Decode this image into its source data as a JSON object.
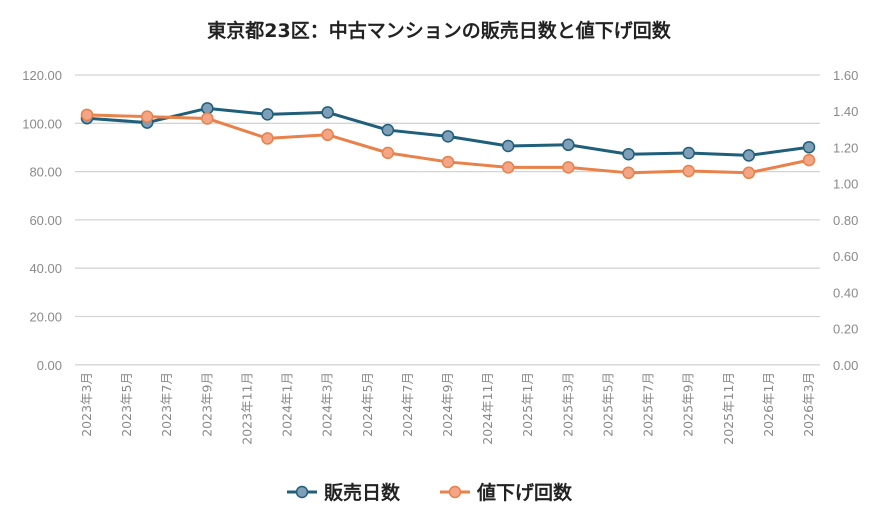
{
  "chart_data": {
    "type": "line",
    "title": "東京都23区：中古マンションの販売日数と値下げ回数",
    "x_tick_labels": [
      "2023年3月",
      "2023年5月",
      "2023年7月",
      "2023年9月",
      "2023年11月",
      "2024年1月",
      "2024年3月",
      "2024年5月",
      "2024年7月",
      "2024年9月",
      "2024年11月",
      "2025年1月",
      "2025年3月",
      "2025年5月",
      "2025年7月",
      "2025年9月",
      "2025年11月",
      "2026年1月",
      "2026年3月"
    ],
    "x": [
      "2023-03",
      "2023-06",
      "2023-09",
      "2023-12",
      "2024-03",
      "2024-06",
      "2024-09",
      "2024-12",
      "2025-03",
      "2025-06",
      "2025-09",
      "2025-12",
      "2026-03"
    ],
    "y_left": {
      "min": 0,
      "max": 120,
      "step": 20,
      "tick_labels": [
        "0.00",
        "20.00",
        "40.00",
        "60.00",
        "80.00",
        "100.00",
        "120.00"
      ]
    },
    "y_right": {
      "min": 0,
      "max": 1.6,
      "step": 0.2,
      "tick_labels": [
        "0.00",
        "0.20",
        "0.40",
        "0.60",
        "0.80",
        "1.00",
        "1.20",
        "1.40",
        "1.60"
      ]
    },
    "grid": true,
    "legend_position": "bottom",
    "series": [
      {
        "name": "販売日数",
        "axis": "left",
        "color": "#1f5f7a",
        "marker_color": "#7f9fb8",
        "values": [
          102.1,
          100.3,
          106.2,
          103.7,
          104.5,
          97.2,
          94.6,
          90.6,
          91.1,
          87.2,
          87.7,
          86.7,
          90.1
        ]
      },
      {
        "name": "値下げ回数",
        "axis": "right",
        "color": "#e8814a",
        "marker_color": "#f3a585",
        "values": [
          1.38,
          1.37,
          1.36,
          1.25,
          1.27,
          1.17,
          1.12,
          1.09,
          1.09,
          1.06,
          1.07,
          1.06,
          1.13
        ]
      }
    ]
  }
}
